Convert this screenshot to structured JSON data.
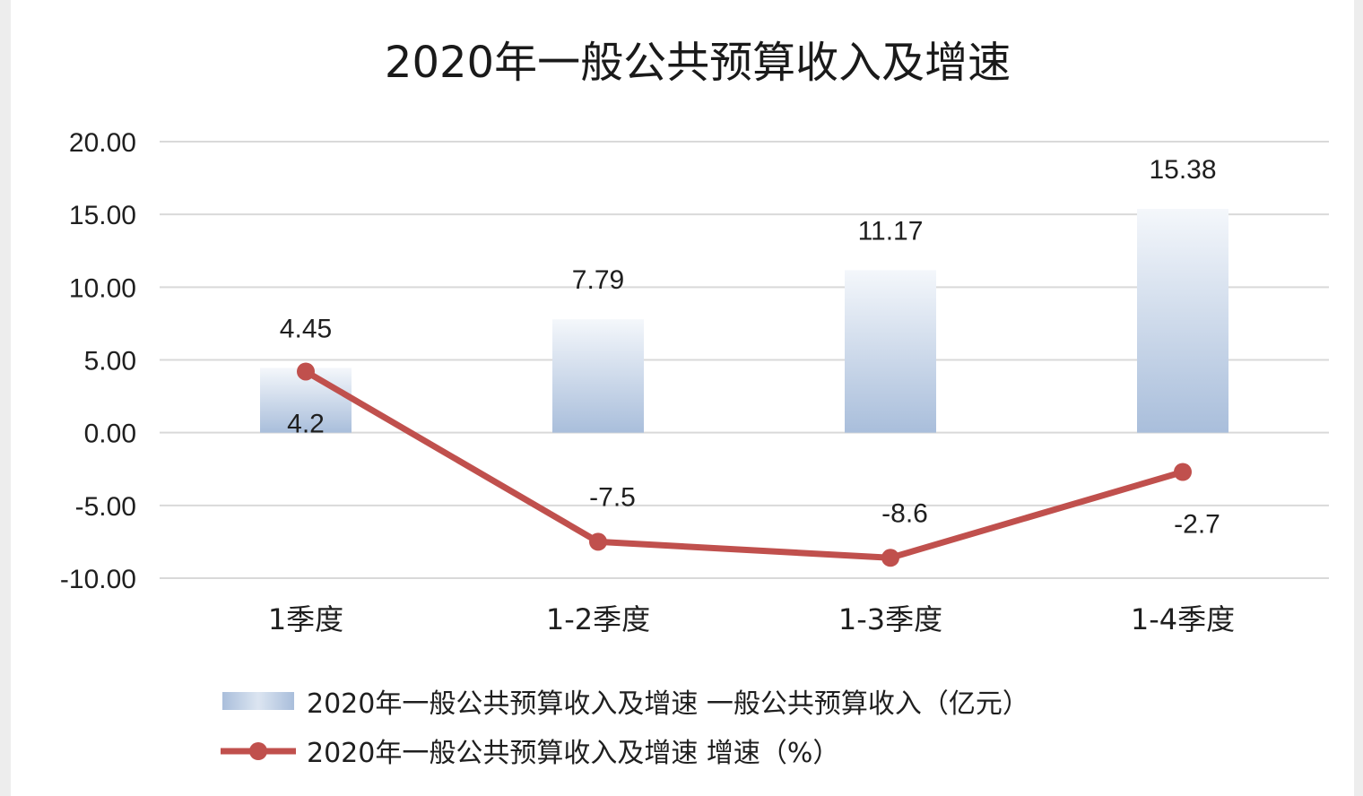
{
  "chart_data": {
    "type": "bar+line",
    "title": "2020年一般公共预算收入及增速",
    "categories": [
      "1季度",
      "1-2季度",
      "1-3季度",
      "1-4季度"
    ],
    "ylim": [
      -10,
      20
    ],
    "yticks": [
      "20.00",
      "15.00",
      "10.00",
      "5.00",
      "0.00",
      "-5.00",
      "-10.00"
    ],
    "ytick_values": [
      20,
      15,
      10,
      5,
      0,
      -5,
      -10
    ],
    "grid": true,
    "legend_position": "bottom",
    "series": [
      {
        "name": "2020年一般公共预算收入及增速 一般公共预算收入（亿元）",
        "kind": "bar",
        "values": [
          4.45,
          7.79,
          11.17,
          15.38
        ],
        "labels": [
          "4.45",
          "7.79",
          "11.17",
          "15.38"
        ],
        "color_top": "#f4f7fb",
        "color_bottom": "#a9bedb"
      },
      {
        "name": "2020年一般公共预算收入及增速 增速（%）",
        "kind": "line",
        "values": [
          4.2,
          -7.5,
          -8.6,
          -2.7
        ],
        "labels": [
          "4.2",
          "-7.5",
          "-8.6",
          "-2.7"
        ],
        "color": "#c0504d"
      }
    ]
  }
}
